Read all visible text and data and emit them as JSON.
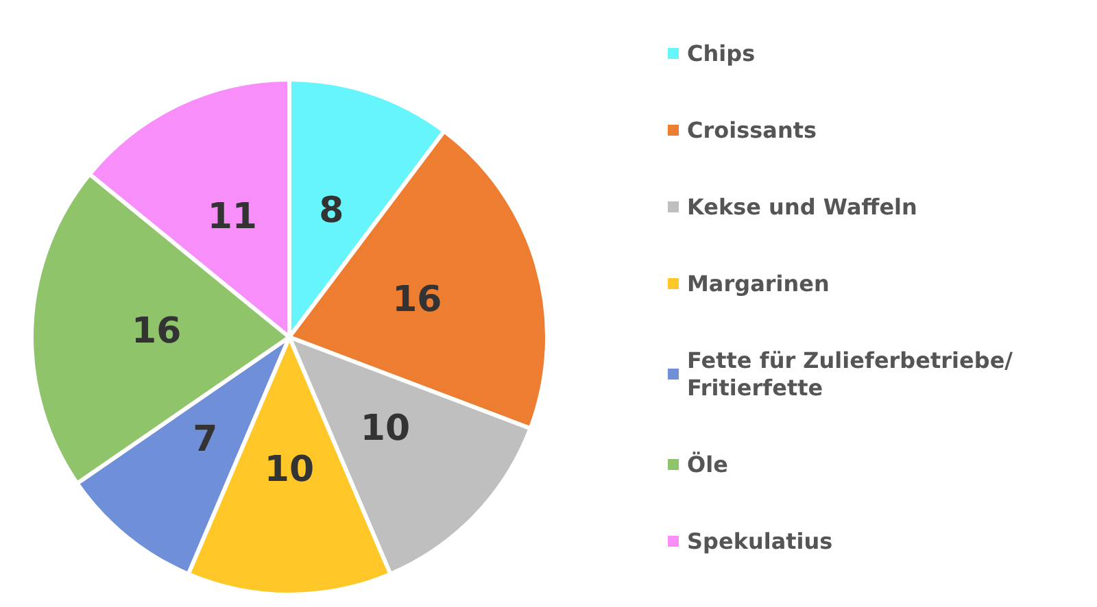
{
  "chart_data": {
    "type": "pie",
    "categories": [
      "Chips",
      "Croissants",
      "Kekse und Waffeln",
      "Margarinen",
      "Fette für Zulieferbetriebe/ Fritierfette",
      "Öle",
      "Spekulatius"
    ],
    "values": [
      8,
      16,
      10,
      10,
      7,
      16,
      11
    ],
    "colors": [
      "#66f5fa",
      "#ed7d31",
      "#bfbfbf",
      "#ffc828",
      "#6f8fd8",
      "#8fc46a",
      "#f78ef9"
    ],
    "data_labels": true,
    "legend": "right"
  }
}
